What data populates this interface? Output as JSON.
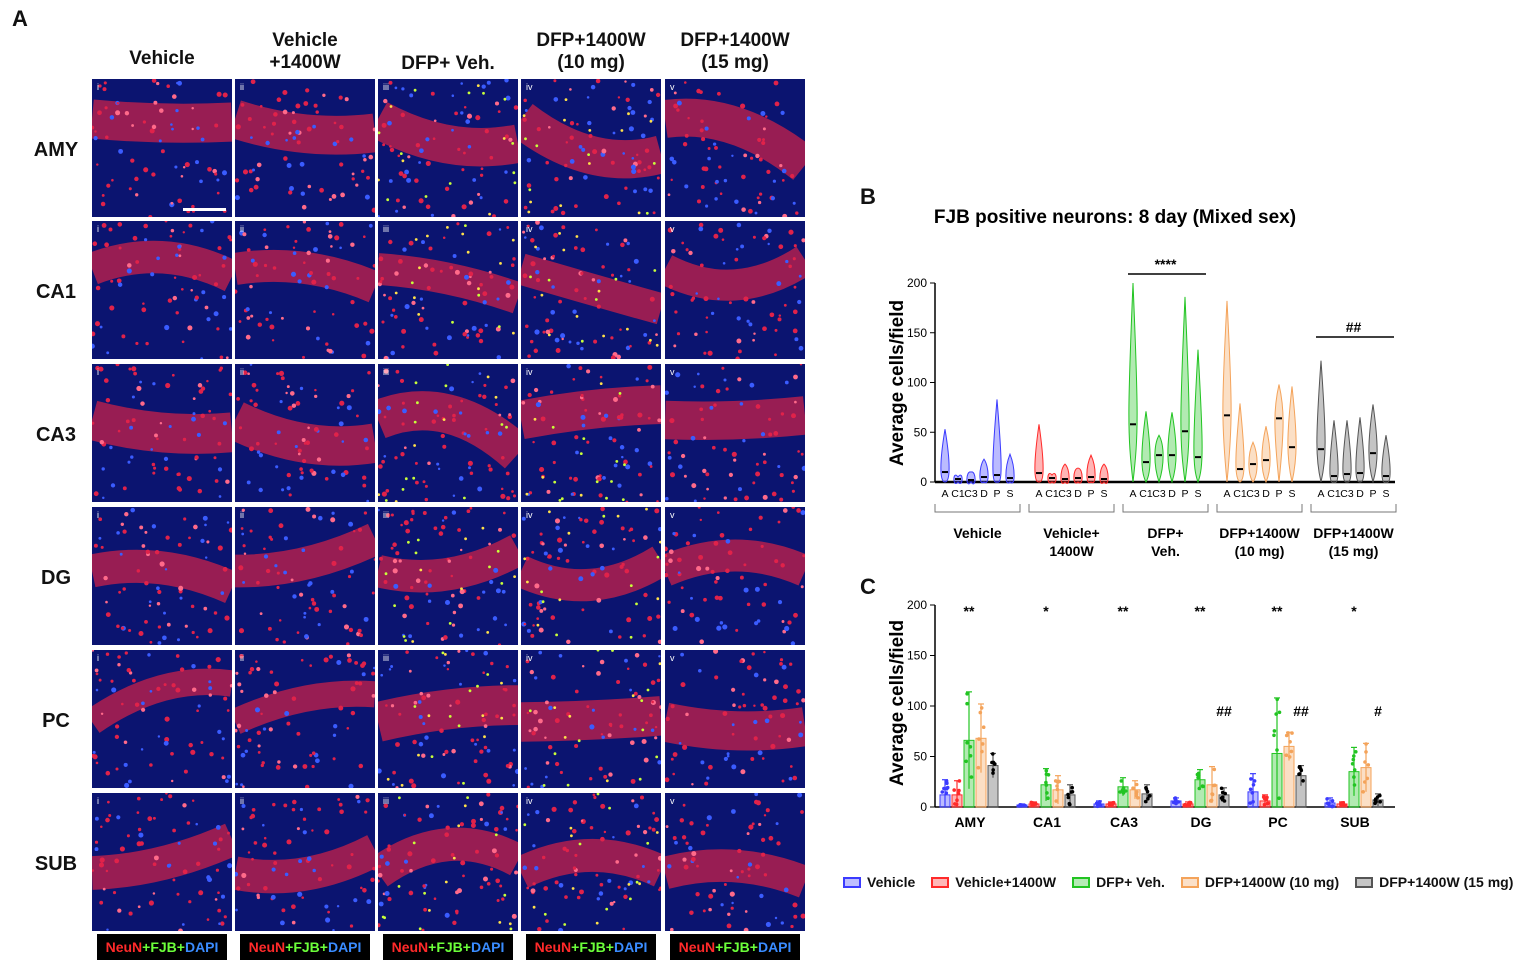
{
  "panel_a": {
    "letter": "A",
    "columns": [
      "Vehicle",
      "Vehicle\n+1400W",
      "DFP+ Veh.",
      "DFP+1400W\n(10 mg)",
      "DFP+1400W\n(15 mg)"
    ],
    "rows": [
      "AMY",
      "CA1",
      "CA3",
      "DG",
      "PC",
      "SUB"
    ],
    "tile_labels": [
      "i",
      "ii",
      "iii",
      "iv",
      "v"
    ],
    "stain_parts": [
      "NeuN",
      "+FJB+",
      "DAPI"
    ]
  },
  "panel_b": {
    "letter": "B"
  },
  "panel_c": {
    "letter": "C"
  },
  "colors": {
    "vehicle": "#3b3bff",
    "vehicle_1400w": "#ff2a2a",
    "dfp_veh": "#22c422",
    "dfp_1400w_10": "#f4a35a",
    "dfp_1400w_15": "#555555"
  },
  "chart_data": [
    {
      "type": "violin",
      "title": "FJB positive neurons: 8 day (Mixed sex)",
      "ylabel": "Average cells/field",
      "ylim": [
        0,
        200
      ],
      "yticks": [
        0,
        50,
        100,
        150,
        200
      ],
      "region_ticks": [
        "A",
        "C1",
        "C3",
        "D",
        "P",
        "S"
      ],
      "groups": [
        {
          "label": "Vehicle",
          "medians": [
            10,
            3,
            2,
            5,
            7,
            4
          ],
          "maxima": [
            53,
            5,
            10,
            23,
            83,
            28
          ]
        },
        {
          "label": "Vehicle+\n1400W",
          "medians": [
            9,
            4,
            3,
            4,
            5,
            3
          ],
          "maxima": [
            58,
            7,
            18,
            14,
            27,
            18
          ]
        },
        {
          "label": "DFP+\nVeh.",
          "medians": [
            58,
            20,
            27,
            27,
            51,
            25
          ],
          "maxima": [
            200,
            71,
            47,
            70,
            186,
            133
          ]
        },
        {
          "label": "DFP+1400W\n(10 mg)",
          "medians": [
            67,
            13,
            18,
            22,
            64,
            35
          ],
          "maxima": [
            182,
            79,
            40,
            56,
            98,
            96
          ]
        },
        {
          "label": "DFP+1400W\n(15 mg)",
          "medians": [
            33,
            6,
            8,
            9,
            29,
            6
          ],
          "maxima": [
            122,
            62,
            62,
            65,
            78,
            47
          ]
        }
      ],
      "annotations": [
        {
          "text": "****",
          "group": "DFP+\nVeh."
        },
        {
          "text": "##",
          "group": "DFP+1400W\n(15 mg)"
        }
      ]
    },
    {
      "type": "bar",
      "ylabel": "Average cells/field",
      "ylim": [
        0,
        200
      ],
      "yticks": [
        0,
        50,
        100,
        150,
        200
      ],
      "categories": [
        "AMY",
        "CA1",
        "CA3",
        "DG",
        "PC",
        "SUB"
      ],
      "series": [
        {
          "name": "Vehicle",
          "values": [
            12,
            2,
            3,
            6,
            15,
            4
          ],
          "errors": [
            15,
            1,
            3,
            3,
            18,
            5
          ]
        },
        {
          "name": "Vehicle+1400W",
          "values": [
            12,
            3,
            3,
            3,
            6,
            3
          ],
          "errors": [
            14,
            2,
            2,
            2,
            6,
            2
          ]
        },
        {
          "name": "DFP+ Veh.",
          "values": [
            66,
            22,
            20,
            27,
            53,
            35
          ],
          "errors": [
            48,
            16,
            9,
            10,
            55,
            24
          ]
        },
        {
          "name": "DFP+1400W (10 mg)",
          "values": [
            68,
            17,
            17,
            22,
            60,
            39
          ],
          "errors": [
            34,
            14,
            9,
            18,
            14,
            24
          ]
        },
        {
          "name": "DFP+1400W (15 mg)",
          "values": [
            41,
            12,
            13,
            12,
            31,
            7
          ],
          "errors": [
            12,
            10,
            9,
            7,
            10,
            6
          ]
        }
      ],
      "annotations": [
        {
          "category": "AMY",
          "text": "**",
          "series": "DFP+ Veh."
        },
        {
          "category": "CA1",
          "text": "*",
          "series": "DFP+ Veh."
        },
        {
          "category": "CA3",
          "text": "**",
          "series": "DFP+ Veh."
        },
        {
          "category": "DG",
          "text": "**",
          "series": "DFP+ Veh."
        },
        {
          "category": "DG",
          "text": "##",
          "series": "DFP+1400W (15 mg)"
        },
        {
          "category": "PC",
          "text": "**",
          "series": "DFP+ Veh."
        },
        {
          "category": "PC",
          "text": "##",
          "series": "DFP+1400W (15 mg)"
        },
        {
          "category": "SUB",
          "text": "*",
          "series": "DFP+ Veh."
        },
        {
          "category": "SUB",
          "text": "#",
          "series": "DFP+1400W (15 mg)"
        }
      ]
    }
  ],
  "legend": [
    "Vehicle",
    "Vehicle+1400W",
    "DFP+ Veh.",
    "DFP+1400W (10 mg)",
    "DFP+1400W (15 mg)"
  ]
}
